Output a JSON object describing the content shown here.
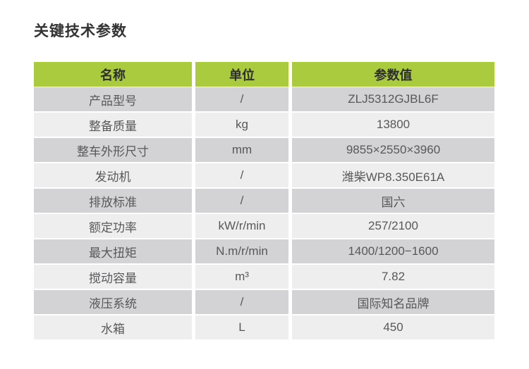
{
  "page": {
    "title": "关键技术参数"
  },
  "colors": {
    "accent_green": "#a9cb3d",
    "row_dark": "#d3d3d5",
    "row_light": "#eeeeef"
  },
  "table": {
    "headers": [
      "名称",
      "单位",
      "参数值"
    ],
    "rows": [
      {
        "name": "产品型号",
        "unit": "/",
        "value": "ZLJ5312GJBL6F"
      },
      {
        "name": "整备质量",
        "unit": "kg",
        "value": "13800"
      },
      {
        "name": "整车外形尺寸",
        "unit": "mm",
        "value": "9855×2550×3960"
      },
      {
        "name": "发动机",
        "unit": "/",
        "value": "潍柴WP8.350E61A"
      },
      {
        "name": "排放标准",
        "unit": "/",
        "value": "国六"
      },
      {
        "name": "额定功率",
        "unit": "kW/r/min",
        "value": "257/2100"
      },
      {
        "name": "最大扭矩",
        "unit": "N.m/r/min",
        "value": "1400/1200−1600"
      },
      {
        "name": "搅动容量",
        "unit": "m³",
        "value": "7.82"
      },
      {
        "name": "液压系统",
        "unit": "/",
        "value": "国际知名品牌"
      },
      {
        "name": "水箱",
        "unit": "L",
        "value": "450"
      }
    ]
  }
}
